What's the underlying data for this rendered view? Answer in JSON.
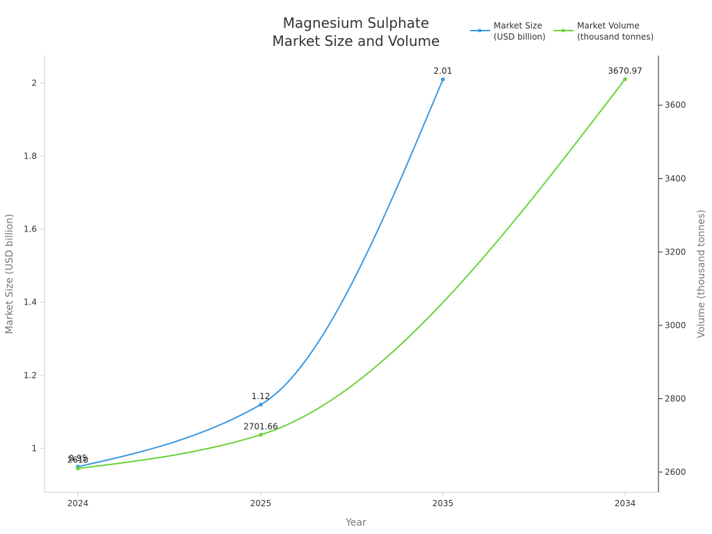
{
  "chart_data": {
    "type": "line",
    "title": [
      "Magnesium Sulphate",
      "Market Size and Volume"
    ],
    "categories": [
      "2024",
      "2025",
      "2035",
      "2034"
    ],
    "xlabel": "Year",
    "ylabel_left": "Market Size (USD billion)",
    "ylabel_right": "Volume (thousand tonnes)",
    "left_axis": {
      "min": 0.88,
      "max": 2.075,
      "ticks": [
        1,
        1.2,
        1.4,
        1.6,
        1.8,
        2
      ],
      "tick_labels": [
        "1",
        "1.2",
        "1.4",
        "1.6",
        "1.8",
        "2"
      ]
    },
    "right_axis": {
      "min": 2545,
      "max": 3735,
      "ticks": [
        2600,
        2800,
        3000,
        3200,
        3400,
        3600
      ],
      "tick_labels": [
        "2600",
        "2800",
        "3000",
        "3200",
        "3400",
        "3600"
      ]
    },
    "series": [
      {
        "name": "Market Size (USD billion)",
        "legend_lines": [
          "Market Size",
          "(USD billion)"
        ],
        "axis": "left",
        "color": "#3b97e0",
        "points": [
          {
            "category": "2024",
            "value": 0.95,
            "label": "0.95"
          },
          {
            "category": "2025",
            "value": 1.12,
            "label": "1.12"
          },
          {
            "category": "2035",
            "value": 2.01,
            "label": "2.01"
          }
        ]
      },
      {
        "name": "Market Volume (thousand tonnes)",
        "legend_lines": [
          "Market Volume",
          "(thousand tonnes)"
        ],
        "axis": "right",
        "color": "#6ad23a",
        "points": [
          {
            "category": "2024",
            "value": 2610,
            "label": "2610"
          },
          {
            "category": "2025",
            "value": 2701.66,
            "label": "2701.66"
          },
          {
            "category": "2034",
            "value": 3670.97,
            "label": "3670.97"
          }
        ]
      }
    ],
    "legend_position": "top-right"
  }
}
